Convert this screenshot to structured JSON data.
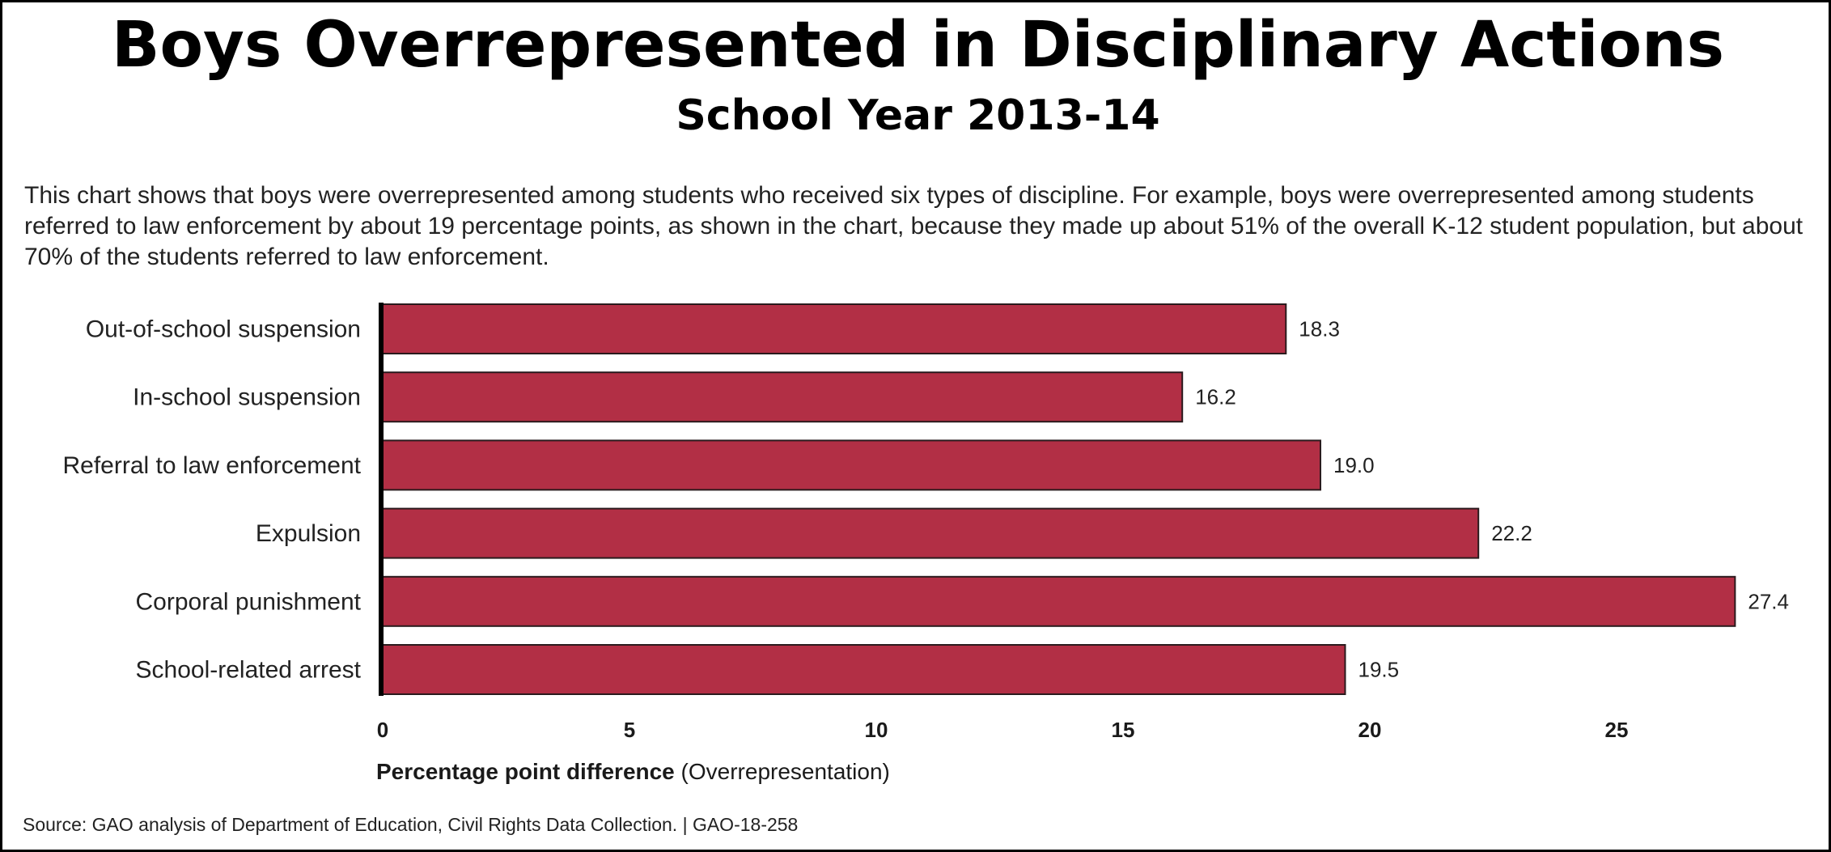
{
  "title": "Boys Overrepresented in Disciplinary Actions",
  "subtitle": "School Year 2013-14",
  "description": "This chart shows that boys were overrepresented among students who received six types of discipline. For example, boys were overrepresented among students referred to law enforcement by about 19 percentage points, as shown in the chart, because they made up about 51% of the overall K-12 student population, but about 70% of the students referred to law enforcement.",
  "x_axis_title_bold": "Percentage point difference",
  "x_axis_title_rest": " (Overrepresentation)",
  "source": "Source: GAO analysis of Department of Education, Civil Rights Data Collection.  |  GAO-18-258",
  "colors": {
    "bar": "#b22f45",
    "bar_outline": "#2a1a1d",
    "axis": "#000000",
    "text": "#222222"
  },
  "chart_data": {
    "type": "bar",
    "orientation": "horizontal",
    "title": "Boys Overrepresented in Disciplinary Actions",
    "subtitle": "School Year 2013-14",
    "xlabel": "Percentage point difference (Overrepresentation)",
    "ylabel": "",
    "categories": [
      "Out-of-school suspension",
      "In-school suspension",
      "Referral to law enforcement",
      "Expulsion",
      "Corporal punishment",
      "School-related arrest"
    ],
    "values": [
      18.3,
      16.2,
      19.0,
      22.2,
      27.4,
      19.5
    ],
    "value_labels": [
      "18.3",
      "16.2",
      "19.0",
      "22.2",
      "27.4",
      "19.5"
    ],
    "xlim": [
      0,
      28
    ],
    "xticks": [
      0,
      5,
      10,
      15,
      20,
      25
    ],
    "grid": false,
    "legend": "none"
  }
}
